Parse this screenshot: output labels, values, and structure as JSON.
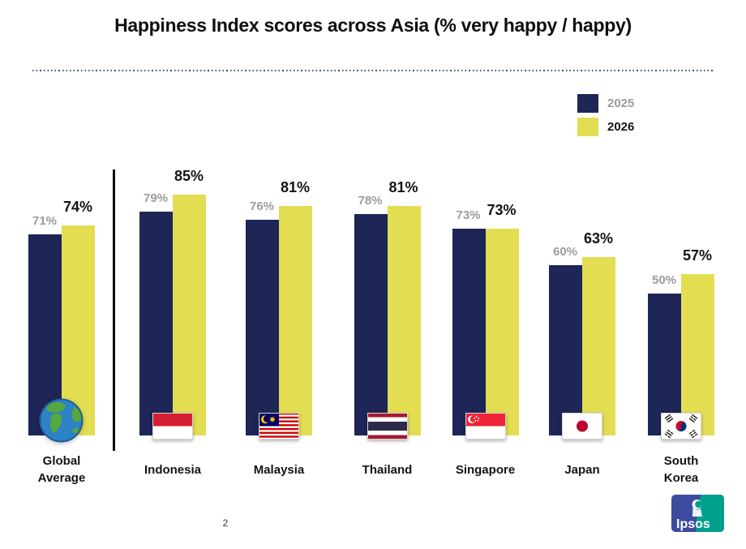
{
  "slide": {
    "title": "Happiness Index scores across Asia (% very happy / happy)",
    "page_number": "2",
    "brand": "Ipsos"
  },
  "chart_data": {
    "type": "bar",
    "title": "Happiness Index scores across Asia (% very happy / happy)",
    "categories": [
      "Global Average",
      "Indonesia",
      "Malaysia",
      "Thailand",
      "Singapore",
      "Japan",
      "South Korea"
    ],
    "category_display_lines": [
      [
        "Global",
        "Average"
      ],
      [
        "Indonesia"
      ],
      [
        "Malaysia"
      ],
      [
        "Thailand"
      ],
      [
        "Singapore"
      ],
      [
        "Japan"
      ],
      [
        "South",
        "Korea"
      ]
    ],
    "series": [
      {
        "name": "2025",
        "color": "#1e2557",
        "label_color": "#9c9c9c",
        "values": [
          71,
          79,
          76,
          78,
          73,
          60,
          50
        ]
      },
      {
        "name": "2026",
        "color": "#e3dd52",
        "label_color": "#141414",
        "values": [
          74,
          85,
          81,
          81,
          73,
          63,
          57
        ]
      }
    ],
    "value_suffix": "%",
    "xlabel": "",
    "ylabel": "",
    "ylim": [
      0,
      100
    ],
    "grid": false,
    "legend_position": "top-right",
    "icons": [
      "globe-icon",
      "indonesia-flag-icon",
      "malaysia-flag-icon",
      "thailand-flag-icon",
      "singapore-flag-icon",
      "japan-flag-icon",
      "south-korea-flag-icon"
    ],
    "separator_after_first_group": true
  }
}
